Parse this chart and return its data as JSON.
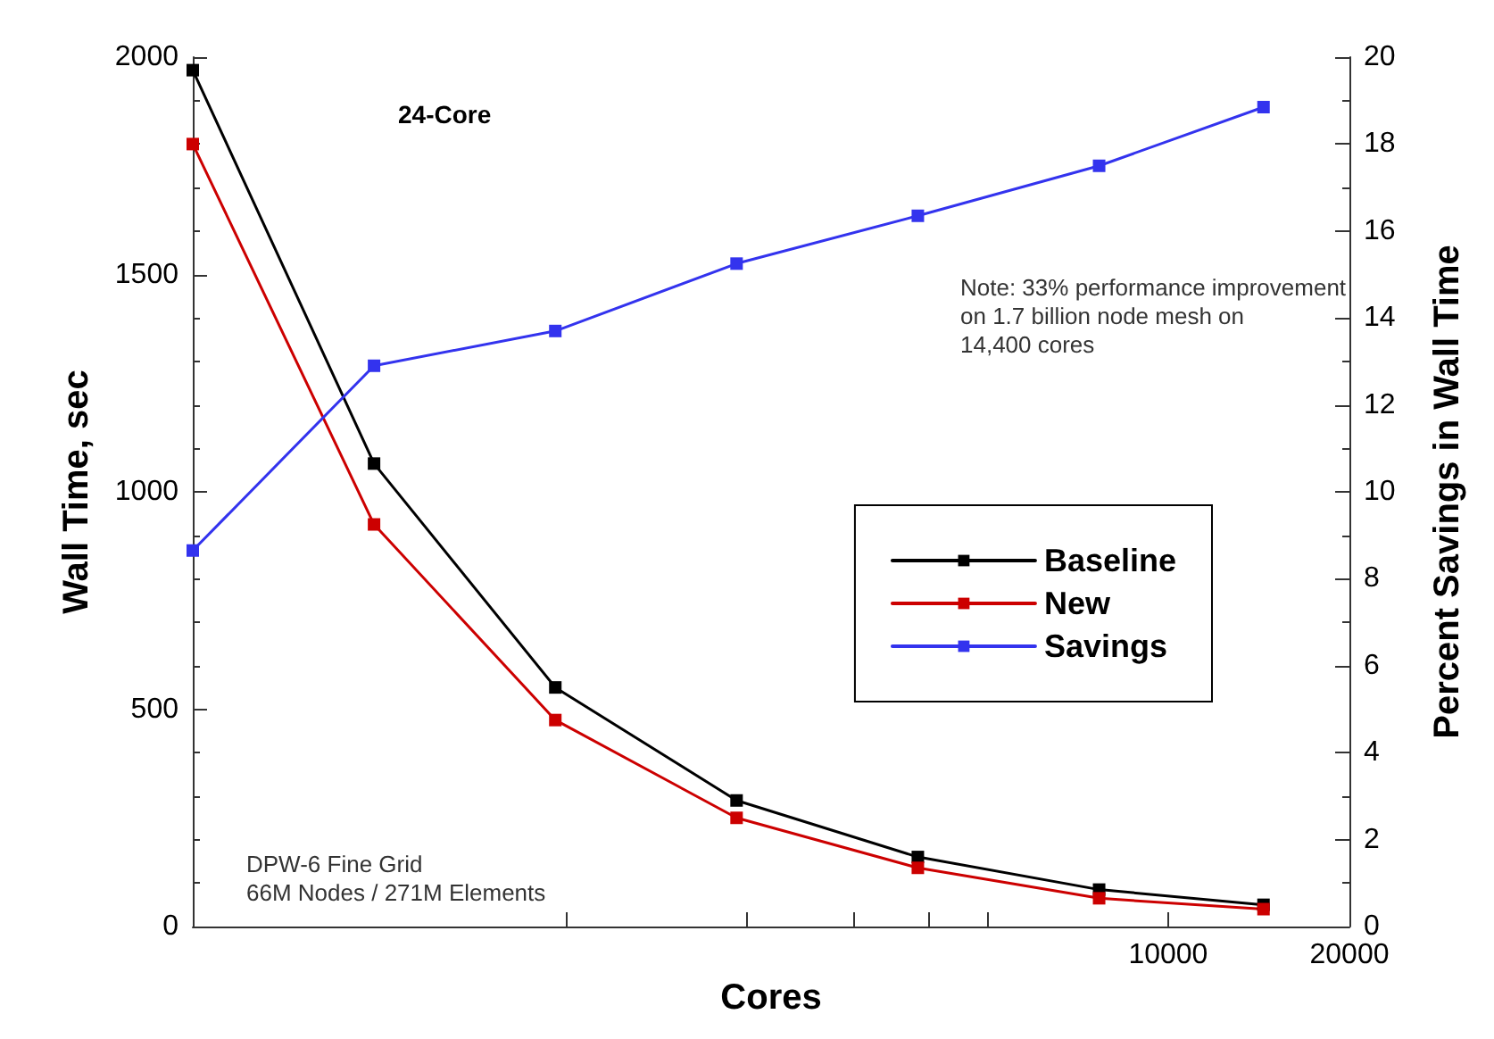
{
  "chart_data": {
    "type": "line",
    "xlabel": "Cores",
    "ylabel": "Wall Time, sec",
    "y2label": "Percent Savings in Wall Time",
    "x": [
      240,
      480,
      960,
      1920,
      3840,
      7680,
      14400
    ],
    "log": "x",
    "xlim": [
      240,
      20000
    ],
    "xticks": [
      {
        "value": 1000,
        "label": null
      },
      {
        "value": 2000,
        "label": null
      },
      {
        "value": 3000,
        "label": null
      },
      {
        "value": 4000,
        "label": null
      },
      {
        "value": 5000,
        "label": null
      },
      10000,
      20000
    ],
    "ylim": [
      0,
      2000
    ],
    "yticks": [
      0,
      500,
      1000,
      1500,
      2000
    ],
    "y2lim": [
      0,
      20
    ],
    "y2ticks": [
      0,
      2,
      4,
      6,
      8,
      10,
      12,
      14,
      16,
      18,
      20
    ],
    "series": [
      {
        "name": "Baseline",
        "color": "#000000",
        "values": [
          1970,
          1065,
          550,
          290,
          160,
          85,
          50
        ]
      },
      {
        "name": "New",
        "color": "#cc0000",
        "values": [
          1800,
          925,
          475,
          250,
          135,
          65,
          40
        ]
      },
      {
        "name": "Savings",
        "color": "#3333ee",
        "axis": "y2",
        "values": [
          8.65,
          12.9,
          13.7,
          15.25,
          16.35,
          17.5,
          18.85
        ]
      }
    ],
    "marker": "square",
    "line_style": "solid",
    "grid": false,
    "legend": "right",
    "annotations": [
      "24-Core",
      "Note: 33% performance improvement\non 1.7 billion node mesh on\n14,400 cores",
      "DPW-6 Fine Grid\n66M Nodes / 271M Elements"
    ]
  }
}
